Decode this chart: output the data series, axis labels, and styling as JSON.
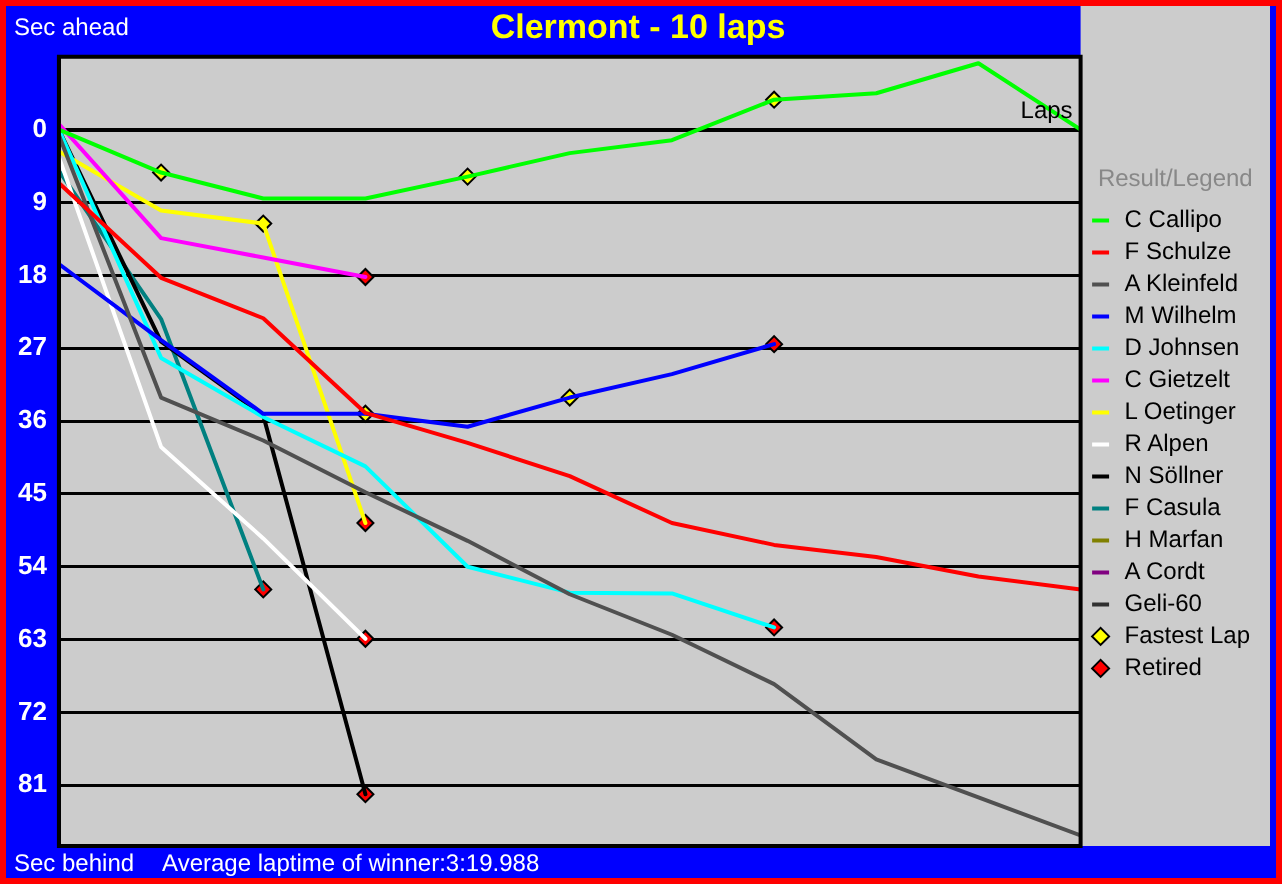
{
  "chart_data": {
    "type": "line",
    "title": "Clermont - 10 laps",
    "ylabel": "Sec ahead",
    "xlabel": "Laps",
    "legend_title": "Result/Legend",
    "annotations": [
      "Sec behind",
      "Average laptime of winner:3:19.988"
    ],
    "categories": [
      null,
      null,
      null,
      null,
      null,
      null,
      null,
      null,
      null,
      null,
      null
    ],
    "ylim": [
      88.5,
      -9
    ],
    "yticks": [
      0,
      9,
      18,
      27,
      36,
      45,
      54,
      63,
      72,
      81
    ],
    "grid": "y",
    "legend": "right",
    "tick_labels": "y",
    "marker": "none",
    "line_style": "solid",
    "series": [
      {
        "name": "C Callipo",
        "color": "#00ff00",
        "values": [
          0,
          5.3,
          8.5,
          8.5,
          5.8,
          2.9,
          1.3,
          -3.7,
          -4.5,
          -8.2,
          0
        ]
      },
      {
        "name": "F Schulze",
        "color": "#ff0000",
        "values": [
          6.6,
          18.3,
          23.3,
          35,
          38.7,
          42.8,
          48.6,
          51.3,
          52.8,
          55.2,
          56.8
        ]
      },
      {
        "name": "A Kleinfeld",
        "color": "#505050",
        "values": [
          0.7,
          33.1,
          38.4,
          44.8,
          50.8,
          57.4,
          62.4,
          68.5,
          77.8,
          82.5,
          87.2
        ]
      },
      {
        "name": "M Wilhelm",
        "color": "#0000ff",
        "values": [
          16.6,
          26,
          35.1,
          35.1,
          36.7,
          33.1,
          30.2,
          26.5,
          null,
          null,
          null
        ]
      },
      {
        "name": "D Johnsen",
        "color": "#00ffff",
        "values": [
          0,
          28.2,
          35.5,
          41.6,
          54,
          57.2,
          57.3,
          61.5,
          null,
          null,
          null
        ]
      },
      {
        "name": "C Gietzelt",
        "color": "#ff00ff",
        "values": [
          -0.7,
          13.4,
          15.8,
          18.2,
          null,
          null,
          null,
          null,
          null,
          null,
          null
        ]
      },
      {
        "name": "L Oetinger",
        "color": "#ffff00",
        "values": [
          2.7,
          10,
          11.6,
          48.6,
          null,
          null,
          null,
          null,
          null,
          null,
          null
        ]
      },
      {
        "name": "R Alpen",
        "color": "#ffffff",
        "values": [
          3.4,
          39.2,
          50.5,
          62.9,
          null,
          null,
          null,
          null,
          null,
          null,
          null
        ]
      },
      {
        "name": "N Söllner",
        "color": "#000000",
        "values": [
          0,
          26.2,
          35.3,
          82.1,
          null,
          null,
          null,
          null,
          null,
          null,
          null
        ]
      },
      {
        "name": "F Casula",
        "color": "#008080",
        "values": [
          5.1,
          23.4,
          56.8,
          null,
          null,
          null,
          null,
          null,
          null,
          null,
          null
        ]
      },
      {
        "name": "H Marfan",
        "color": "#808000",
        "values": [
          null,
          null,
          null,
          null,
          null,
          null,
          null,
          null,
          null,
          null,
          null
        ]
      },
      {
        "name": "A Cordt",
        "color": "#800080",
        "values": [
          null,
          null,
          null,
          null,
          null,
          null,
          null,
          null,
          null,
          null,
          null
        ]
      },
      {
        "name": "Geli-60",
        "color": "#303030",
        "values": [
          null,
          null,
          null,
          null,
          null,
          null,
          null,
          null,
          null,
          null,
          null
        ]
      },
      {
        "name": "Fastest Lap",
        "type": "scatter",
        "marker": "diamond",
        "color": "#ffff00",
        "values": [
          null,
          5.3,
          11.6,
          35.1,
          5.8,
          33.1,
          null,
          -3.7,
          null,
          null,
          null
        ]
      },
      {
        "name": "Retired",
        "type": "scatter",
        "marker": "diamond",
        "color": "#ff0000",
        "values": [
          null,
          null,
          56.8,
          18.2,
          null,
          null,
          null,
          61.5,
          null,
          null,
          null
        ]
      },
      {
        "type": "scatter",
        "marker": "diamond",
        "color": "#ff0000",
        "values": [
          null,
          null,
          null,
          48.6,
          null,
          null,
          null,
          26.5,
          null,
          null,
          null
        ]
      },
      {
        "type": "scatter",
        "marker": "diamond",
        "color": "#ff0000",
        "values": [
          null,
          null,
          null,
          62.9,
          null,
          null,
          null,
          null,
          null,
          null,
          null
        ]
      },
      {
        "type": "scatter",
        "marker": "diamond",
        "color": "#ff0000",
        "values": [
          null,
          null,
          null,
          82.1,
          null,
          null,
          null,
          null,
          null,
          null,
          null
        ]
      }
    ]
  }
}
